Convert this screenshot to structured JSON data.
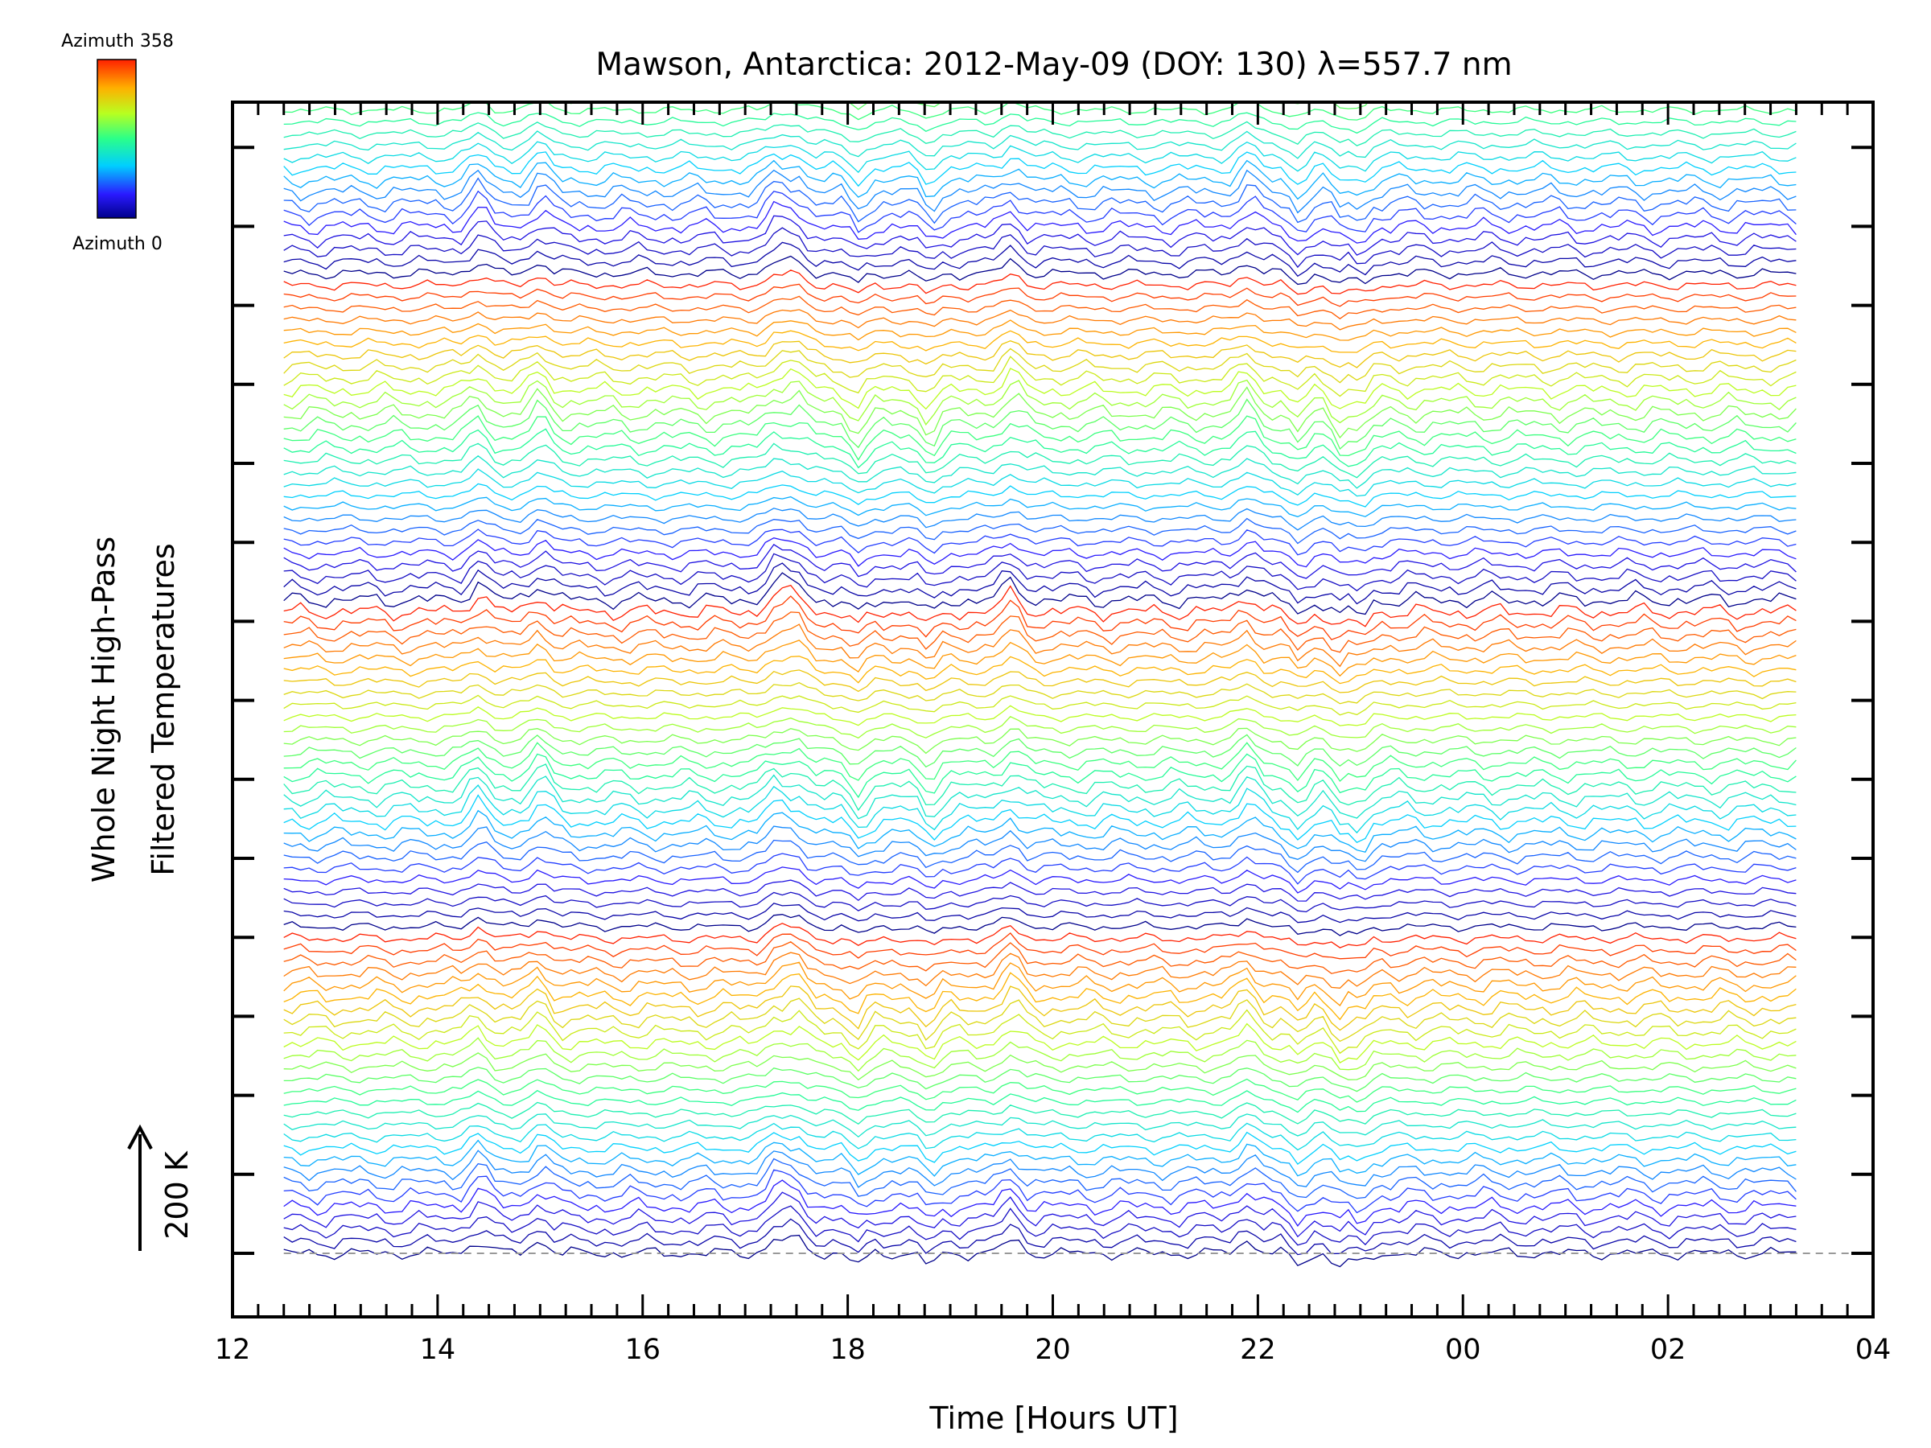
{
  "chart_data": {
    "type": "line",
    "title": "Mawson, Antarctica: 2012-May-09 (DOY: 130) λ=557.7 nm",
    "xlabel": "Time [Hours UT]",
    "ylabel_lines": [
      "Whole Night High-Pass",
      "Filtered Temperatures"
    ],
    "x_ticks": [
      "12",
      "14",
      "16",
      "18",
      "20",
      "22",
      "00",
      "02",
      "04"
    ],
    "xlim": [
      12,
      28
    ],
    "data_x_range": [
      12.5,
      27.25
    ],
    "y_ticks_labeled": false,
    "y_scale_bar": {
      "label": "200 K",
      "direction": "up",
      "value_k": 200
    },
    "baseline_dashed": true,
    "grid": false,
    "n_traces": 140,
    "trace_offset_k": 20,
    "colorbar": {
      "label_top": "Azimuth 358",
      "label_bottom": "Azimuth 0",
      "min": 0,
      "max": 358,
      "colormap": "rainbow"
    },
    "features": {
      "peaks_h": [
        14.4,
        15.0,
        17.3,
        17.5,
        19.6,
        21.9
      ],
      "dips_h": [
        18.1,
        18.8,
        22.4,
        22.8,
        23.0
      ]
    },
    "axis_color": "#000000",
    "baseline_color": "#999999"
  }
}
